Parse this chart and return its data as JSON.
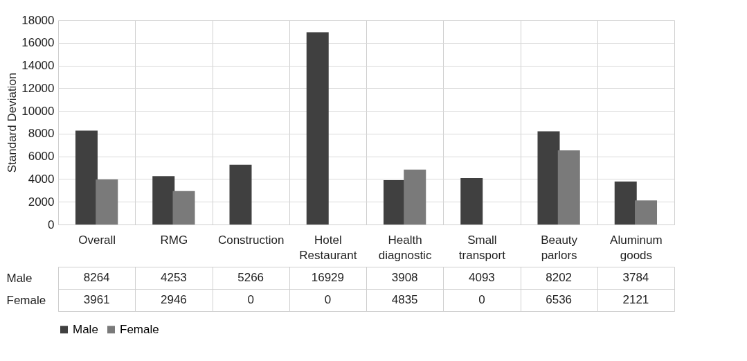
{
  "chart_data": {
    "type": "bar",
    "ylabel": "Standard Deviation",
    "categories": [
      "Overall",
      "RMG",
      "Construction",
      "Hotel Restaurant",
      "Health diagnostic",
      "Small transport",
      "Beauty parlors",
      "Aluminum goods"
    ],
    "series": [
      {
        "name": "Male",
        "color": "#404040",
        "values": [
          8264,
          4253,
          5266,
          16929,
          3908,
          4093,
          8202,
          3784
        ]
      },
      {
        "name": "Female",
        "color": "#7a7a7a",
        "values": [
          3961,
          2946,
          0,
          0,
          4835,
          0,
          6536,
          2121
        ]
      }
    ],
    "ylim": [
      0,
      18000
    ],
    "yticks": [
      0,
      2000,
      4000,
      6000,
      8000,
      10000,
      12000,
      14000,
      16000,
      18000
    ],
    "grid": "y",
    "legend": "bottom",
    "data_labels": true
  }
}
